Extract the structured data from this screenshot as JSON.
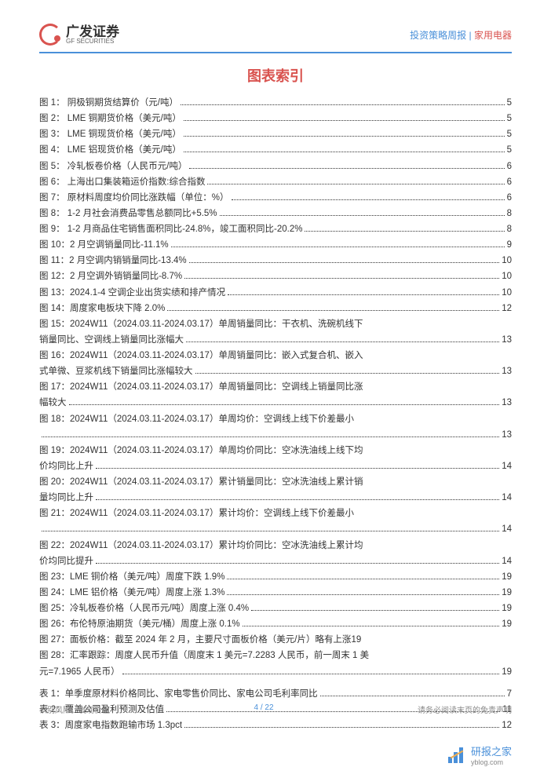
{
  "header": {
    "logo_cn": "广发证券",
    "logo_en": "GF SECURITIES",
    "right_text_1": "投资策略周报",
    "right_sep": " | ",
    "right_text_2": "家用电器"
  },
  "title": "图表索引",
  "toc_figures": [
    {
      "label": "图 1： 阴极铜期货结算价（元/吨）",
      "page": "5"
    },
    {
      "label": "图 2： LME 铜期货价格（美元/吨）",
      "page": "5"
    },
    {
      "label": "图 3： LME 铜现货价格（美元/吨）",
      "page": "5"
    },
    {
      "label": "图 4： LME 铝现货价格（美元/吨）",
      "page": "5"
    },
    {
      "label": "图 5： 冷轧板卷价格（人民币元/吨）",
      "page": "6"
    },
    {
      "label": "图 6： 上海出口集装箱运价指数:综合指数",
      "page": "6"
    },
    {
      "label": "图 7： 原材料周度均价同比涨跌幅（单位：%）",
      "page": "6"
    },
    {
      "label": "图 8： 1-2 月社会消费品零售总额同比+5.5%",
      "page": "8"
    },
    {
      "label": "图 9： 1-2 月商品住宅销售面积同比-24.8%，竣工面积同比-20.2%",
      "page": "8"
    },
    {
      "label": "图 10：2 月空调销量同比-11.1%",
      "page": "9"
    },
    {
      "label": "图 11：2 月空调内销销量同比-13.4%",
      "page": "10"
    },
    {
      "label": "图 12：2 月空调外销销量同比-8.7%",
      "page": "10"
    },
    {
      "label": "图 13：2024.1-4 空调企业出货实绩和排产情况",
      "page": "10"
    },
    {
      "label": "图 14：周度家电板块下降 2.0%",
      "page": "12"
    },
    {
      "label_lines": [
        "图 15：2024W11（2024.03.11-2024.03.17）单周销量同比：干衣机、洗碗机线下",
        "销量同比、空调线上销量同比涨幅大"
      ],
      "page": "13"
    },
    {
      "label_lines": [
        "图 16：2024W11（2024.03.11-2024.03.17）单周销量同比：嵌入式复合机、嵌入",
        "式单微、豆浆机线下销量同比涨幅较大"
      ],
      "page": "13"
    },
    {
      "label_lines": [
        "图 17：2024W11（2024.03.11-2024.03.17）单周销量同比：空调线上销量同比涨",
        "幅较大"
      ],
      "page": "13"
    },
    {
      "label_lines": [
        "图 18：2024W11（2024.03.11-2024.03.17）单周均价：空调线上线下价差最小",
        ""
      ],
      "page": "13"
    },
    {
      "label_lines": [
        "图 19：2024W11（2024.03.11-2024.03.17）单周均价同比：空冰洗油线上线下均",
        "价均同比上升"
      ],
      "page": "14"
    },
    {
      "label_lines": [
        "图 20：2024W11（2024.03.11-2024.03.17）累计销量同比：空冰洗油线上累计销",
        "量均同比上升"
      ],
      "page": "14"
    },
    {
      "label_lines": [
        "图 21：2024W11（2024.03.11-2024.03.17）累计均价：空调线上线下价差最小",
        ""
      ],
      "page": "14"
    },
    {
      "label_lines": [
        "图 22：2024W11（2024.03.11-2024.03.17）累计均价同比：空冰洗油线上累计均",
        "价均同比提升"
      ],
      "page": "14"
    },
    {
      "label": "图 23：LME 铜价格（美元/吨）周度下跌 1.9%",
      "page": "19"
    },
    {
      "label": "图 24：LME 铝价格（美元/吨）周度上涨 1.3%",
      "page": "19"
    },
    {
      "label": "图 25：冷轧板卷价格（人民币元/吨）周度上涨 0.4%",
      "page": "19"
    },
    {
      "label": "图 26：布伦特原油期货（美元/桶）周度上涨 0.1%",
      "page": "19"
    },
    {
      "label": "图 27：面板价格：截至 2024 年 2 月，主要尺寸面板价格（美元/片）略有上涨",
      "page": "19",
      "inline_page": true
    },
    {
      "label_lines": [
        "图 28：汇率跟踪：周度人民币升值（周度末 1 美元=7.2283 人民币，前一周末 1 美",
        "元=7.1965 人民币）"
      ],
      "page": "19"
    }
  ],
  "toc_tables": [
    {
      "label": "表 1：单季度原材料价格同比、家电零售价同比、家电公司毛利率同比",
      "page": "7"
    },
    {
      "label": "表 2：覆盖公司盈利预测及估值",
      "page": "11"
    },
    {
      "label": "表 3：周度家电指数跑输市场 1.3pct",
      "page": "12"
    }
  ],
  "footer": {
    "left": "识别风险，发现价值",
    "center": "4 / 22",
    "right": "请务必阅读末页的免责声明"
  },
  "watermark": "研报之家",
  "watermark_url": "yblog.com"
}
